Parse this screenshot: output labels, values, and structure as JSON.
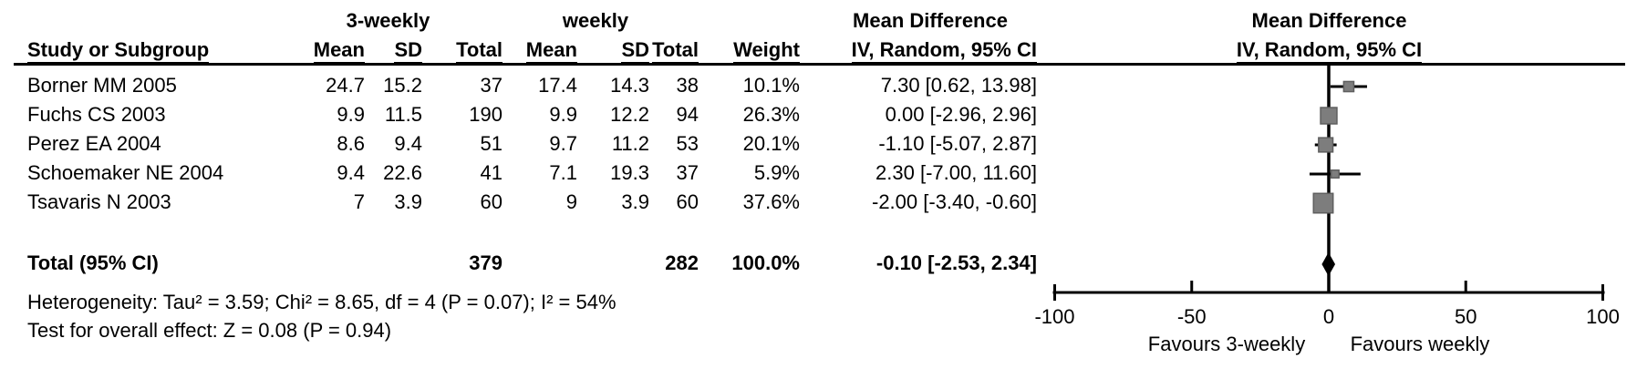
{
  "headers": {
    "group_3weekly": "3-weekly",
    "group_weekly": "weekly",
    "stat_title": "Mean Difference",
    "stat_subtitle": "IV, Random, 95% CI",
    "plot_title": "Mean Difference",
    "plot_subtitle": "IV, Random, 95% CI",
    "study": "Study or Subgroup",
    "mean": "Mean",
    "sd": "SD",
    "total": "Total",
    "weight": "Weight"
  },
  "chart_data": {
    "type": "scatter",
    "subtype": "forest-plot",
    "effect_measure": "Mean Difference",
    "method": "IV, Random, 95% CI",
    "xlim": [
      -100,
      100
    ],
    "xticks": [
      -100,
      -50,
      0,
      50,
      100
    ],
    "axis": {
      "tick_labels": [
        "-100",
        "-50",
        "0",
        "50",
        "100"
      ]
    },
    "favours_left": "Favours 3-weekly",
    "favours_right": "Favours weekly",
    "studies": [
      {
        "name": "Borner MM 2005",
        "mean_3weekly": "24.7",
        "sd_3weekly": "15.2",
        "total_3weekly": "37",
        "mean_weekly": "17.4",
        "sd_weekly": "14.3",
        "total_weekly": "38",
        "weight": "10.1%",
        "weight_pct": 10.1,
        "effect": 7.3,
        "ci_low": 0.62,
        "ci_high": 13.98,
        "ci_text": "7.30 [0.62, 13.98]"
      },
      {
        "name": "Fuchs CS 2003",
        "mean_3weekly": "9.9",
        "sd_3weekly": "11.5",
        "total_3weekly": "190",
        "mean_weekly": "9.9",
        "sd_weekly": "12.2",
        "total_weekly": "94",
        "weight": "26.3%",
        "weight_pct": 26.3,
        "effect": 0.0,
        "ci_low": -2.96,
        "ci_high": 2.96,
        "ci_text": "0.00 [-2.96, 2.96]"
      },
      {
        "name": "Perez EA 2004",
        "mean_3weekly": "8.6",
        "sd_3weekly": "9.4",
        "total_3weekly": "51",
        "mean_weekly": "9.7",
        "sd_weekly": "11.2",
        "total_weekly": "53",
        "weight": "20.1%",
        "weight_pct": 20.1,
        "effect": -1.1,
        "ci_low": -5.07,
        "ci_high": 2.87,
        "ci_text": "-1.10 [-5.07, 2.87]"
      },
      {
        "name": "Schoemaker NE 2004",
        "mean_3weekly": "9.4",
        "sd_3weekly": "22.6",
        "total_3weekly": "41",
        "mean_weekly": "7.1",
        "sd_weekly": "19.3",
        "total_weekly": "37",
        "weight": "5.9%",
        "weight_pct": 5.9,
        "effect": 2.3,
        "ci_low": -7.0,
        "ci_high": 11.6,
        "ci_text": "2.30 [-7.00, 11.60]"
      },
      {
        "name": "Tsavaris N 2003",
        "mean_3weekly": "7",
        "sd_3weekly": "3.9",
        "total_3weekly": "60",
        "mean_weekly": "9",
        "sd_weekly": "3.9",
        "total_weekly": "60",
        "weight": "37.6%",
        "weight_pct": 37.6,
        "effect": -2.0,
        "ci_low": -3.4,
        "ci_high": -0.6,
        "ci_text": "-2.00 [-3.40, -0.60]"
      }
    ],
    "total": {
      "label": "Total (95% CI)",
      "total_3weekly": "379",
      "total_weekly": "282",
      "weight": "100.0%",
      "weight_pct": 100.0,
      "effect": -0.1,
      "ci_low": -2.53,
      "ci_high": 2.34,
      "ci_text": "-0.10 [-2.53, 2.34]"
    }
  },
  "footnotes": {
    "heterogeneity": "Heterogeneity: Tau² = 3.59; Chi² = 8.65, df = 4 (P = 0.07); I² = 54%",
    "overall_effect": "Test for overall effect: Z = 0.08 (P = 0.94)"
  },
  "colors": {
    "marker_fill": "#7d7d7d",
    "marker_border": "#5f5f5f",
    "diamond": "#000000",
    "line": "#000000",
    "text": "#000000",
    "background": "#ffffff"
  }
}
